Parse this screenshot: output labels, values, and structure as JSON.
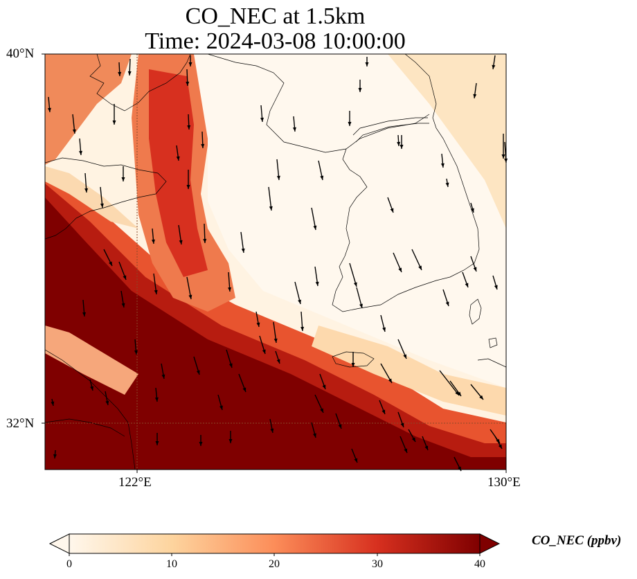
{
  "title": {
    "line1": "CO_NEC at 1.5km",
    "line2": "Time: 2024-03-08 10:00:00"
  },
  "map": {
    "lat_ticks": [
      "40°N",
      "32°N"
    ],
    "lon_ticks": [
      "122°E",
      "130°E"
    ],
    "lat_range": [
      31,
      40
    ],
    "lon_range": [
      120,
      130
    ],
    "gridlines": "dotted at 122°E and 32°N",
    "colormap": "OrRd",
    "background": "CO concentration field, high (dark red) over the southwest and low (cream) over the Korean peninsula and Yellow Sea interior",
    "vectors": "wind arrows mostly pointing south to south-southeast"
  },
  "colorbar": {
    "label": "CO_NEC (ppbv)",
    "ticks": [
      "0",
      "10",
      "20",
      "30",
      "40"
    ],
    "range": [
      0,
      40
    ],
    "colors": [
      "#fff7ec",
      "#fdd49e",
      "#fc8d59",
      "#d7301f",
      "#7f0000"
    ],
    "extend": "both"
  }
}
